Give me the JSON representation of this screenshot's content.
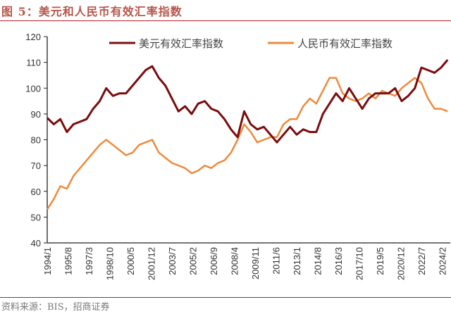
{
  "title": "图 5：美元和人民币有效汇率指数",
  "source": "资料来源：BIS，招商证券",
  "chart_data": {
    "type": "line",
    "title": "图 5：美元和人民币有效汇率指数",
    "xlabel": "",
    "ylabel": "",
    "ylim": [
      40,
      120
    ],
    "yticks": [
      "40",
      "50",
      "60",
      "70",
      "80",
      "90",
      "100",
      "110",
      "120"
    ],
    "xticks": [
      "1994/1",
      "1995/8",
      "1997/3",
      "1998/10",
      "2000/5",
      "2001/12",
      "2003/7",
      "2005/2",
      "2006/9",
      "2008/4",
      "2009/11",
      "2011/6",
      "2013/1",
      "2014/8",
      "2016/3",
      "2017/10",
      "2019/5",
      "2020/12",
      "2022/7",
      "2024/2"
    ],
    "legend": "top",
    "grid": false,
    "x": [
      "1994/1",
      "1994/7",
      "1995/1",
      "1995/7",
      "1996/1",
      "1996/7",
      "1997/1",
      "1997/7",
      "1998/1",
      "1998/7",
      "1999/1",
      "1999/7",
      "2000/1",
      "2000/7",
      "2001/1",
      "2001/7",
      "2002/1",
      "2002/7",
      "2003/1",
      "2003/7",
      "2004/1",
      "2004/7",
      "2005/1",
      "2005/7",
      "2006/1",
      "2006/7",
      "2007/1",
      "2007/7",
      "2008/1",
      "2008/7",
      "2009/1",
      "2009/7",
      "2010/1",
      "2010/7",
      "2011/1",
      "2011/7",
      "2012/1",
      "2012/7",
      "2013/1",
      "2013/7",
      "2014/1",
      "2014/7",
      "2015/1",
      "2015/7",
      "2016/1",
      "2016/7",
      "2017/1",
      "2017/7",
      "2018/1",
      "2018/7",
      "2019/1",
      "2019/7",
      "2020/1",
      "2020/7",
      "2021/1",
      "2021/7",
      "2022/1",
      "2022/7",
      "2023/1",
      "2023/7",
      "2024/1",
      "2024/7"
    ],
    "series": [
      {
        "name": "美元有效汇率指数",
        "color": "#7b0c0c",
        "values": [
          88.5,
          86,
          88,
          83,
          86,
          87,
          88,
          92,
          95,
          100,
          97,
          98,
          98,
          101,
          104,
          107,
          108.5,
          104,
          101,
          96,
          91,
          93,
          90,
          94,
          95,
          92,
          91,
          88,
          84,
          81,
          91,
          86,
          84,
          85,
          82,
          79,
          82,
          85,
          82,
          84,
          83,
          83,
          90,
          94,
          98,
          95,
          100,
          96,
          92,
          96,
          98,
          98,
          98,
          100,
          95,
          97,
          100,
          108,
          107,
          106,
          108,
          111
        ]
      },
      {
        "name": "人民币有效汇率指数",
        "color": "#ee8a3c",
        "values": [
          53,
          57,
          62,
          61,
          66,
          69,
          72,
          75,
          78,
          80,
          78,
          76,
          74,
          75,
          78,
          79,
          80,
          75,
          73,
          71,
          70,
          69,
          67,
          68,
          70,
          69,
          71,
          72,
          75,
          80,
          86,
          83,
          79,
          80,
          81,
          81,
          86,
          88,
          88,
          93,
          96,
          94,
          99,
          104,
          104,
          98,
          96,
          95,
          96,
          98,
          96,
          99,
          98,
          97,
          100,
          102,
          104,
          102,
          96,
          92,
          92,
          91
        ]
      }
    ]
  }
}
